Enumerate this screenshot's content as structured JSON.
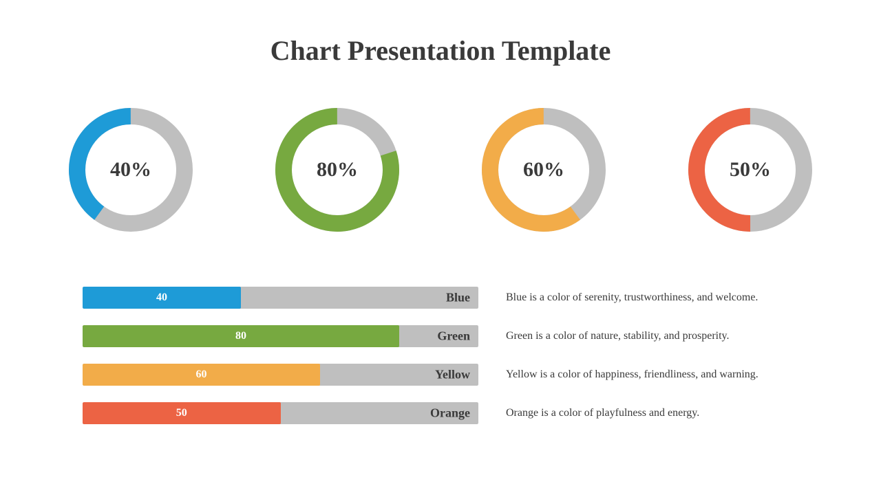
{
  "title": "Chart Presentation Template",
  "title_fontsize": 40,
  "title_color": "#3a3a3a",
  "background_color": "#ffffff",
  "track_color": "#bfbfbf",
  "donut": {
    "size": 180,
    "stroke_width": 24,
    "start_at_top": true,
    "clockwise": true
  },
  "items": [
    {
      "percent": 40,
      "percent_label": "40%",
      "value_label": "40",
      "name": "Blue",
      "color": "#1e9bd7",
      "description": "Blue is a color of serenity, trustworthiness, and welcome."
    },
    {
      "percent": 80,
      "percent_label": "80%",
      "value_label": "80",
      "name": "Green",
      "color": "#77a940",
      "description": "Green is a color of nature, stability, and prosperity."
    },
    {
      "percent": 60,
      "percent_label": "60%",
      "value_label": "60",
      "name": "Yellow",
      "color": "#f2ac49",
      "description": "Yellow is a color of happiness, friendliness, and warning."
    },
    {
      "percent": 50,
      "percent_label": "50%",
      "value_label": "50",
      "name": "Orange",
      "color": "#ec6344",
      "description": "Orange is a color of playfulness and energy."
    }
  ],
  "bar": {
    "height": 32,
    "gap": 24,
    "track_width": 575,
    "track_color": "#bfbfbf",
    "value_font_color": "#ffffff",
    "name_font_color": "#3a3a3a",
    "desc_font_color": "#3a3a3a",
    "value_fontsize": 16,
    "name_fontsize": 18,
    "desc_fontsize": 16
  }
}
